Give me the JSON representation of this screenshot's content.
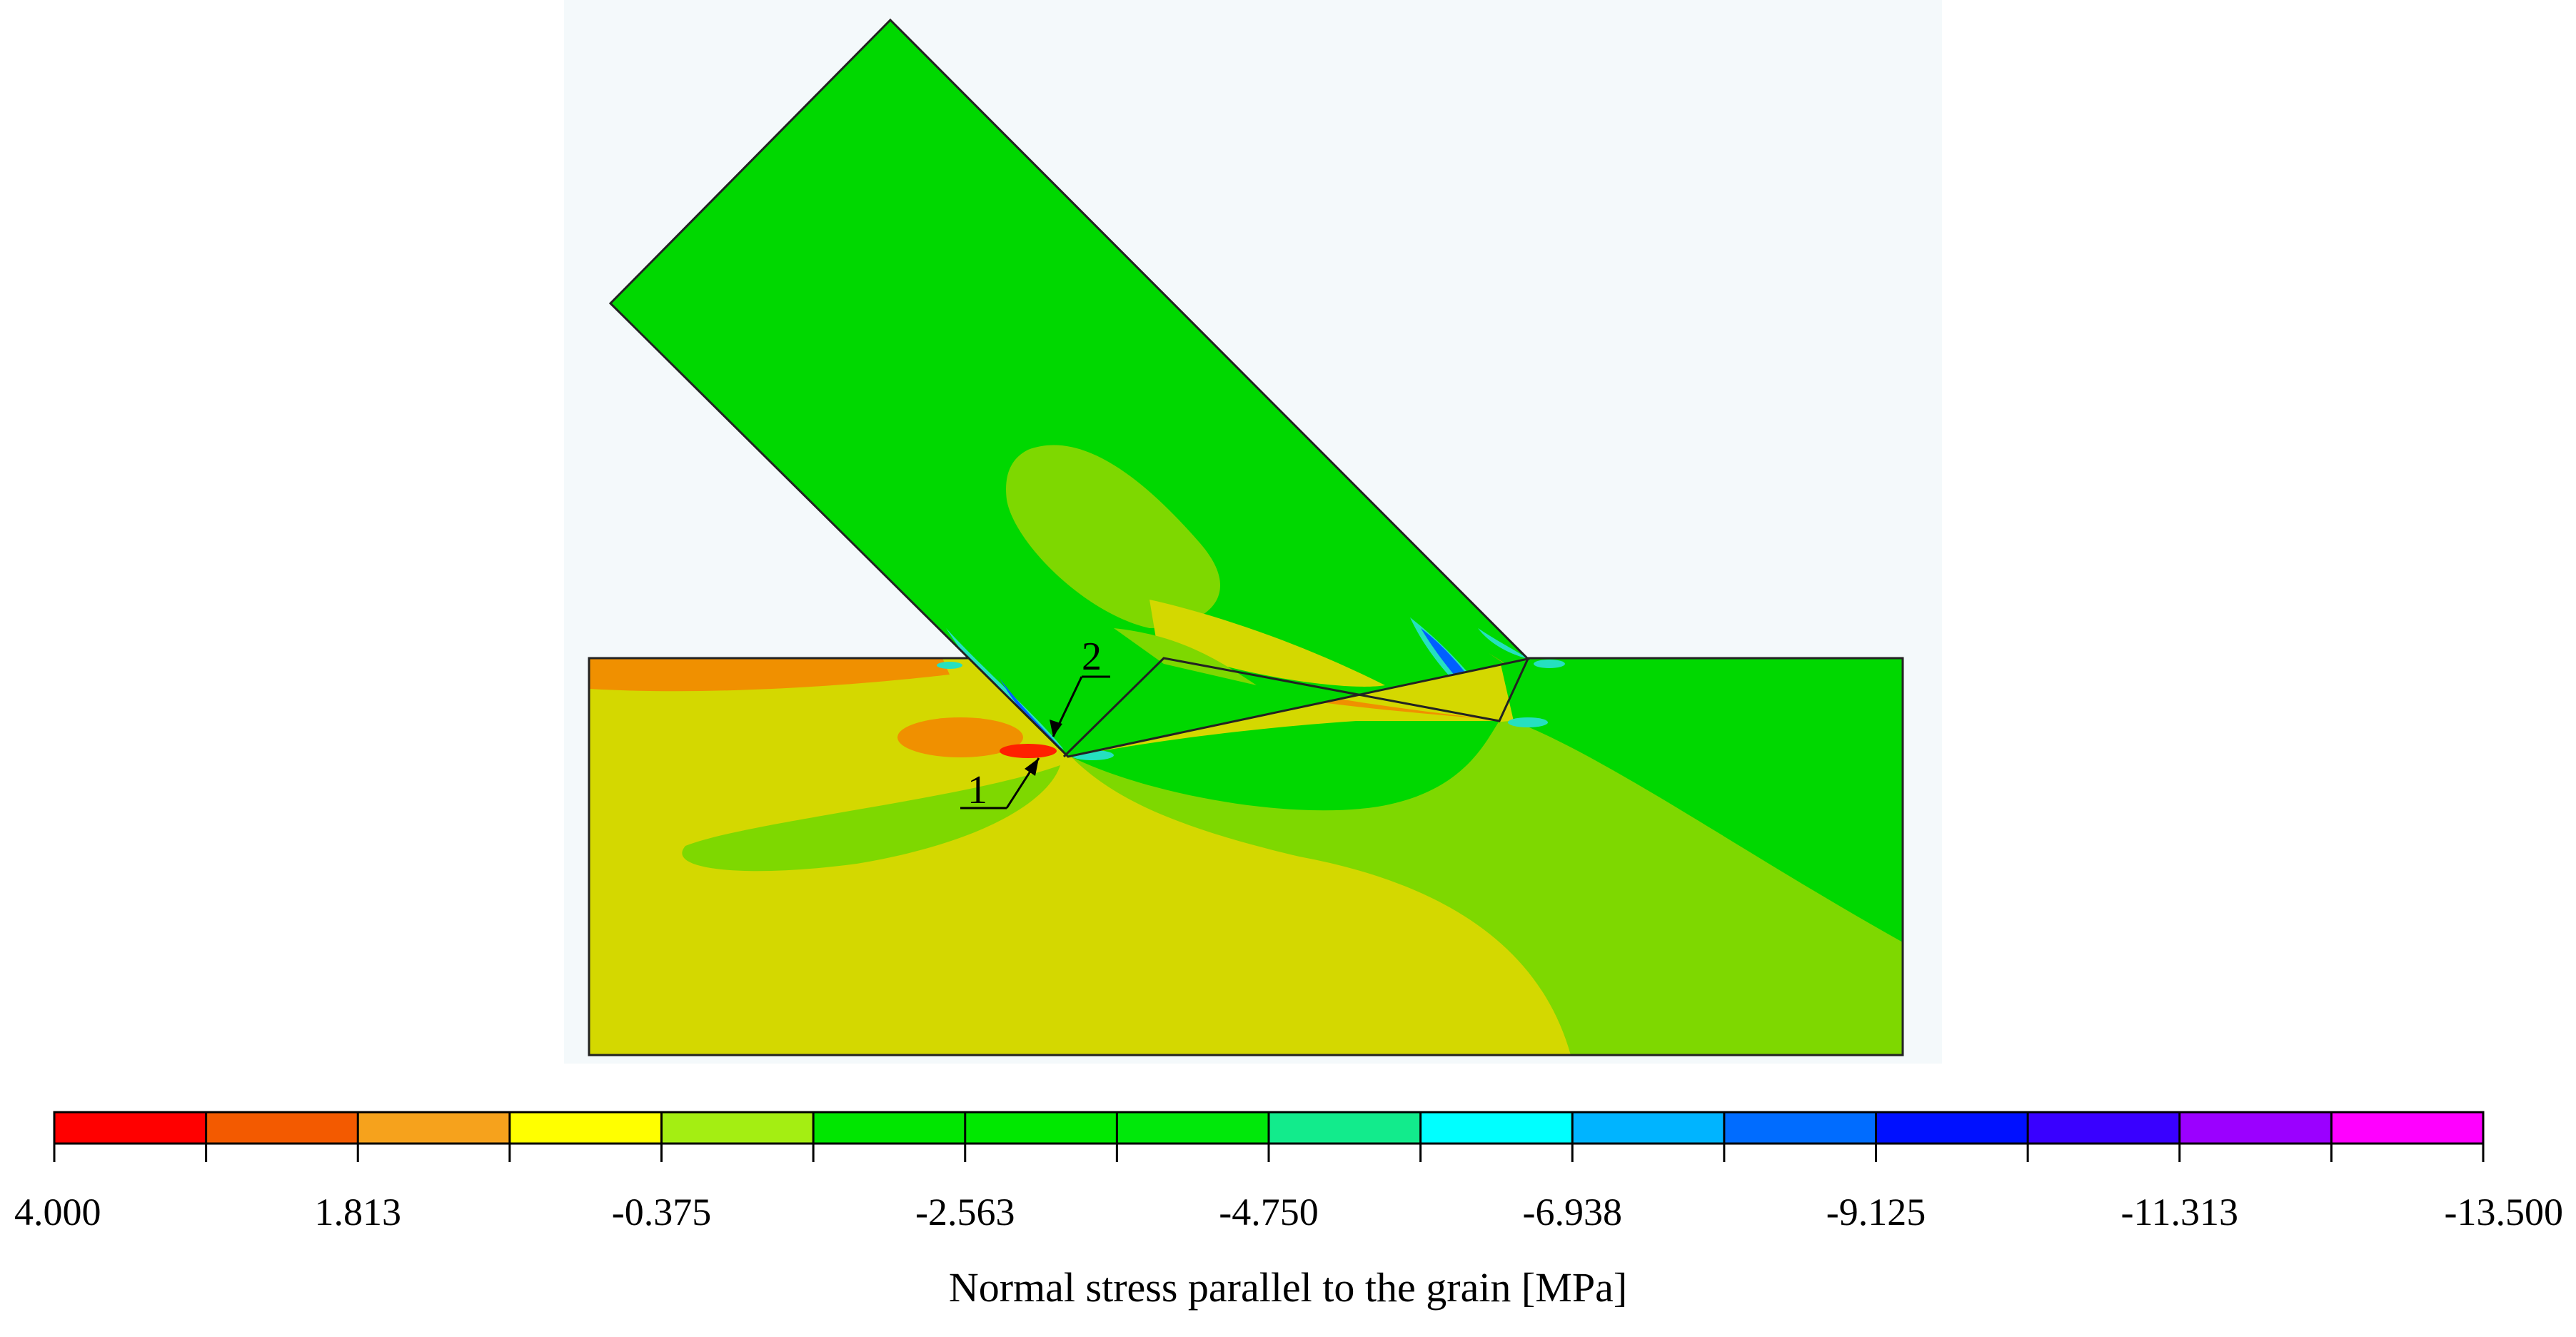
{
  "figure": {
    "description_label": "Normal stress parallel to the grain [MPa]",
    "markers": [
      {
        "id": "1",
        "label": "1"
      },
      {
        "id": "2",
        "label": "2"
      }
    ]
  },
  "colorbar": {
    "min": -13.5,
    "max": 4.0,
    "tick_labels": [
      "4.000",
      "1.813",
      "-0.375",
      "-2.563",
      "-4.750",
      "-6.938",
      "-9.125",
      "-11.313",
      "-13.500"
    ],
    "band_colors": [
      "#ff0000",
      "#f35a00",
      "#f6a21c",
      "#ffff00",
      "#a4ee12",
      "#00e600",
      "#00e800",
      "#00e80a",
      "#12eb8c",
      "#00ffff",
      "#00b4ff",
      "#006cff",
      "#0010ff",
      "#3900ff",
      "#9b00ff",
      "#ff00ff"
    ],
    "axis_label": "Normal stress parallel to the grain [MPa]"
  },
  "colors": {
    "green": "#00d800",
    "green_light": "#7ed800",
    "yellow_green": "#d4d800",
    "orange": "#f09000",
    "red": "#ff2000",
    "cyan": "#25e0c0",
    "blue": "#0060ff",
    "background_panel": "#f4f9fb"
  }
}
